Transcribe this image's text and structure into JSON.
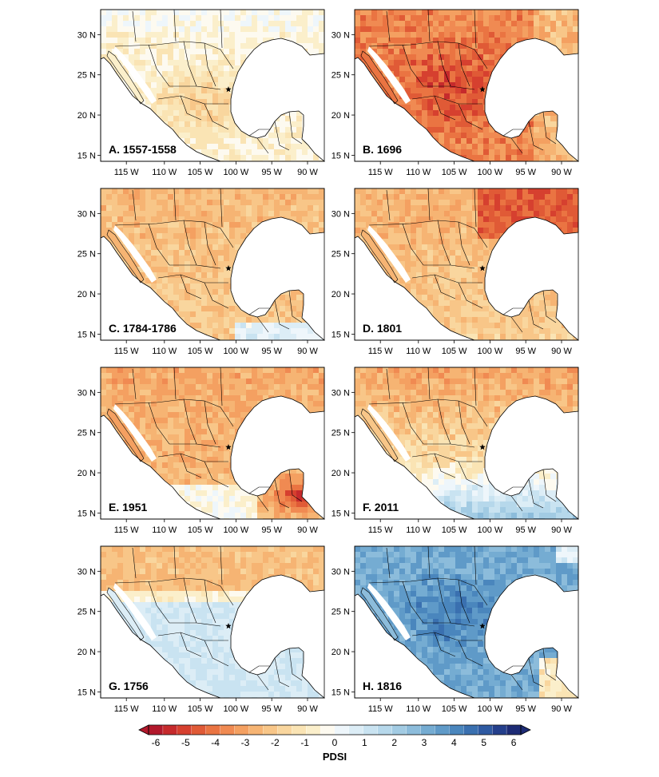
{
  "figure": {
    "colorbar": {
      "title": "PDSI",
      "ticks": [
        "-6",
        "-5",
        "-4",
        "-3",
        "-2",
        "-1",
        "0",
        "1",
        "2",
        "3",
        "4",
        "5",
        "6"
      ],
      "colors": [
        "#b2182b",
        "#c62a2c",
        "#d6402f",
        "#e05a36",
        "#ea7442",
        "#f08a52",
        "#f4a061",
        "#f6b473",
        "#f8c688",
        "#f9d69e",
        "#fae4b4",
        "#fbefcb",
        "#fdfaf0",
        "#eef6fb",
        "#dcedf6",
        "#c9e3f1",
        "#b6d8eb",
        "#a2cbe3",
        "#8cbcdb",
        "#75acd2",
        "#5f9ac8",
        "#4a86bd",
        "#3a70b0",
        "#2e5aa2",
        "#243f8c",
        "#1d2b75"
      ]
    },
    "axes": {
      "lat_ticks": [
        "30 N",
        "25 N",
        "20 N",
        "15 N"
      ],
      "lon_ticks": [
        "115 W",
        "110 W",
        "105 W",
        "100 W",
        "95 W",
        "90 W"
      ]
    },
    "marker": "star"
  },
  "chart_data": [
    {
      "type": "heatmap",
      "panel": "A",
      "label": "A. 1557-1558",
      "pdsi_pattern": "mostly near-normal with mild drought across central Mexico",
      "mean_tendency": -1
    },
    {
      "type": "heatmap",
      "panel": "B",
      "label": "B. 1696",
      "pdsi_pattern": "severe widespread drought across Mexico and southern US",
      "mean_tendency": -4
    },
    {
      "type": "heatmap",
      "panel": "C",
      "label": "C. 1784-1786",
      "pdsi_pattern": "moderate drought across most of Mexico, wetter in the far south",
      "mean_tendency": -2
    },
    {
      "type": "heatmap",
      "panel": "D",
      "label": "D. 1801",
      "pdsi_pattern": "moderate to severe drought, strongest in the northeast",
      "mean_tendency": -2.5
    },
    {
      "type": "heatmap",
      "panel": "E",
      "label": "E. 1951",
      "pdsi_pattern": "moderate to severe drought, strongest in the Yucatan",
      "mean_tendency": -2.5
    },
    {
      "type": "heatmap",
      "panel": "F",
      "label": "F. 2011",
      "pdsi_pattern": "drought in the north, wet conditions in the south",
      "mean_tendency": -2
    },
    {
      "type": "heatmap",
      "panel": "G",
      "label": "G. 1756",
      "pdsi_pattern": "mild drought in the north, mildly wet in central and south",
      "mean_tendency": 0.5
    },
    {
      "type": "heatmap",
      "panel": "H",
      "label": "H. 1816",
      "pdsi_pattern": "widespread wet conditions across Mexico",
      "mean_tendency": 3.5
    }
  ]
}
